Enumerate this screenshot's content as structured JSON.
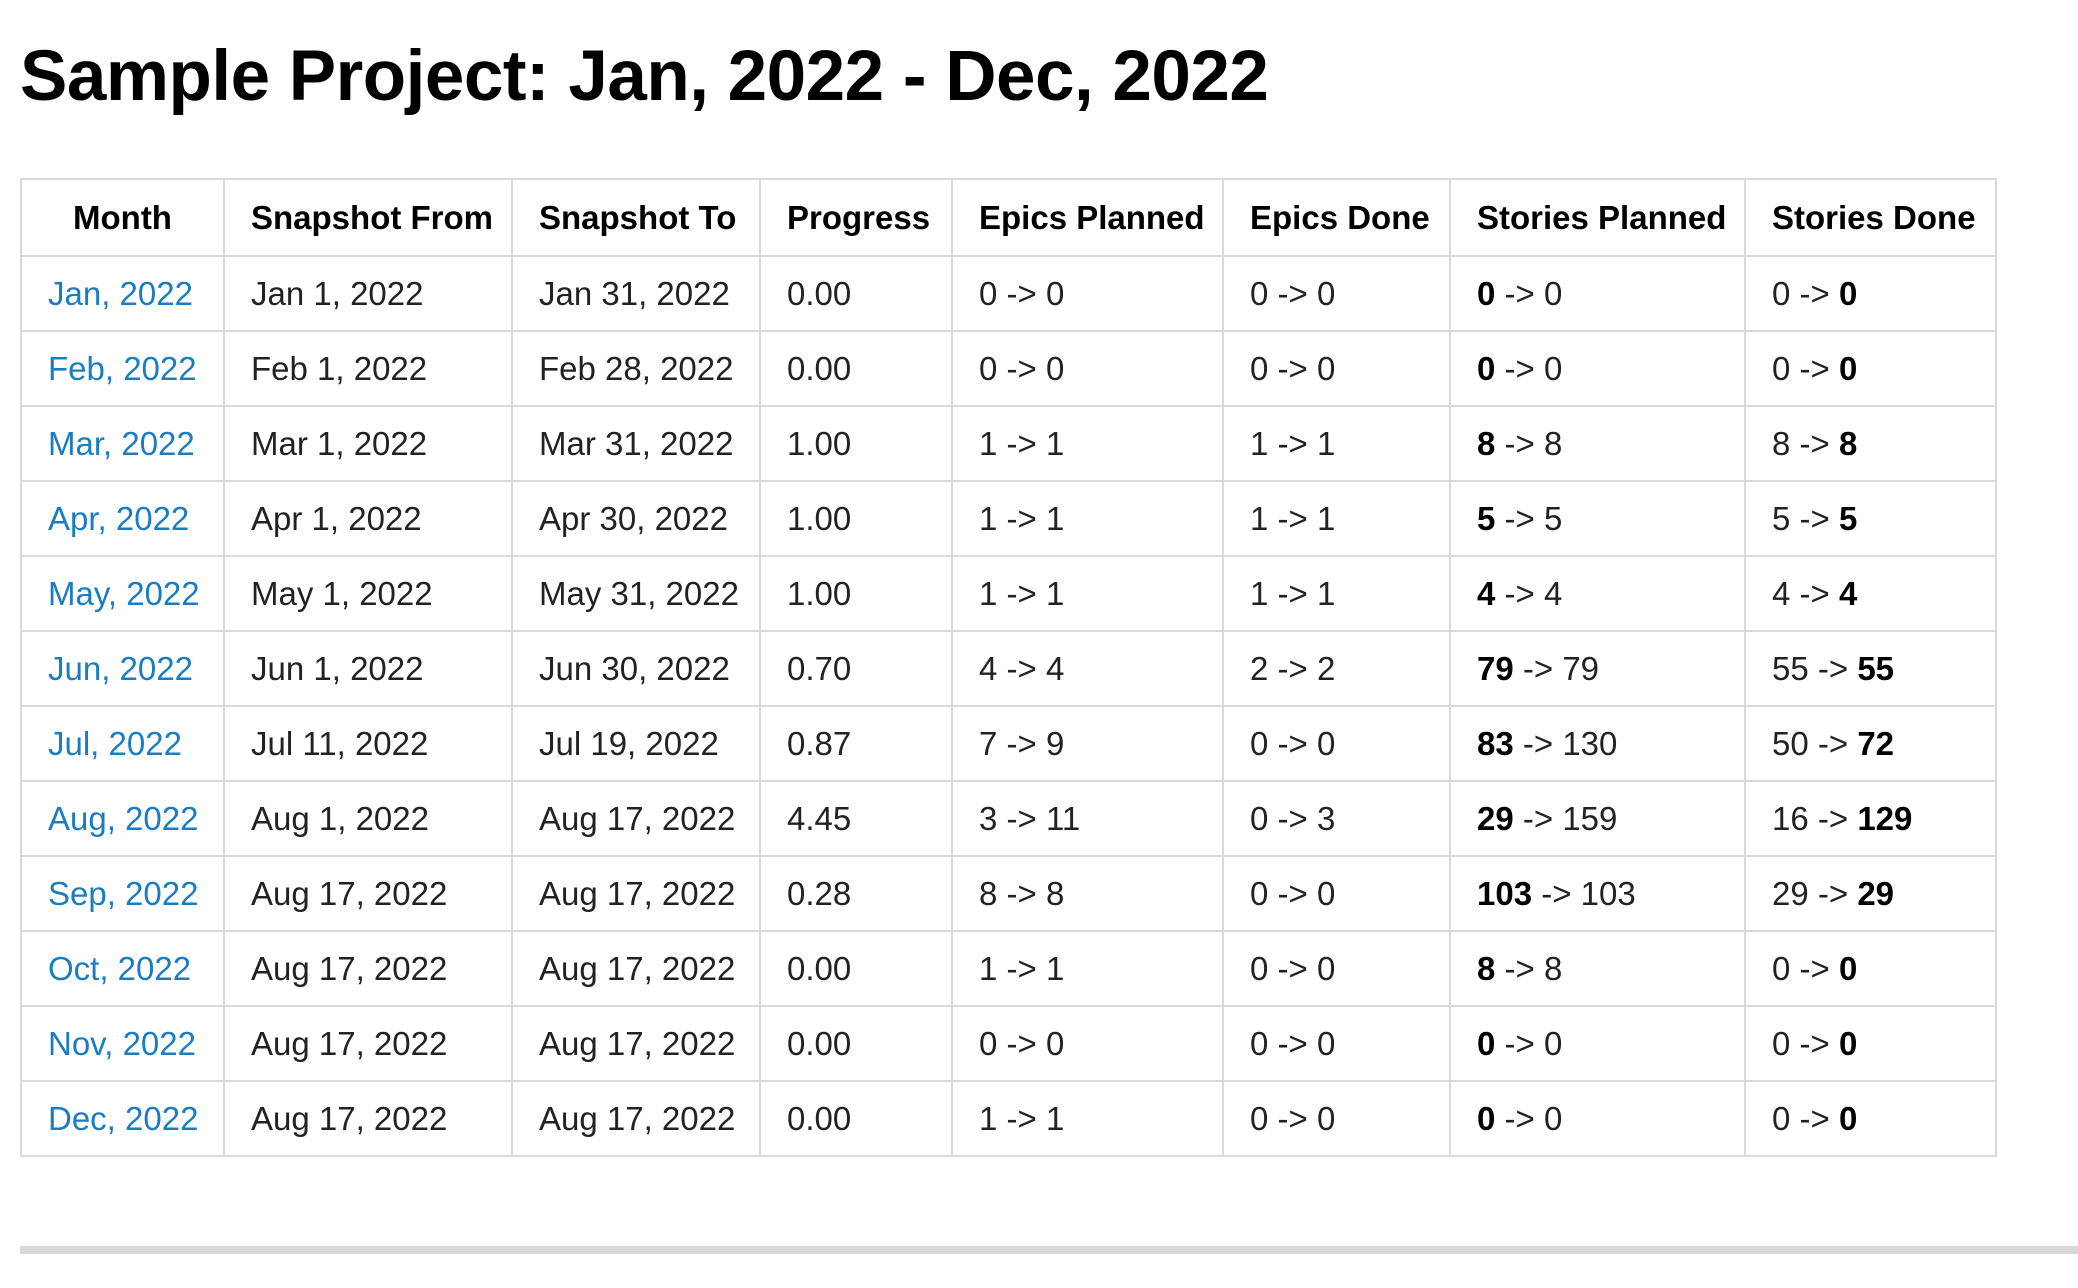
{
  "page": {
    "title": "Sample Project: Jan, 2022 - Dec, 2022"
  },
  "table": {
    "headers": [
      "Month",
      "Snapshot From",
      "Snapshot To",
      "Progress",
      "Epics Planned",
      "Epics Done",
      "Stories Planned",
      "Stories Done"
    ],
    "arrow": "->",
    "rows": [
      {
        "month": "Jan, 2022",
        "from": "Jan 1, 2022",
        "to": "Jan 31, 2022",
        "progress": "0.00",
        "epics_planned": "0 -> 0",
        "epics_done": "0 -> 0",
        "stories_planned_start": "0",
        "stories_planned_end": "0",
        "stories_done_start": "0",
        "stories_done_end": "0"
      },
      {
        "month": "Feb, 2022",
        "from": "Feb 1, 2022",
        "to": "Feb 28, 2022",
        "progress": "0.00",
        "epics_planned": "0 -> 0",
        "epics_done": "0 -> 0",
        "stories_planned_start": "0",
        "stories_planned_end": "0",
        "stories_done_start": "0",
        "stories_done_end": "0"
      },
      {
        "month": "Mar, 2022",
        "from": "Mar 1, 2022",
        "to": "Mar 31, 2022",
        "progress": "1.00",
        "epics_planned": "1 -> 1",
        "epics_done": "1 -> 1",
        "stories_planned_start": "8",
        "stories_planned_end": "8",
        "stories_done_start": "8",
        "stories_done_end": "8"
      },
      {
        "month": "Apr, 2022",
        "from": "Apr 1, 2022",
        "to": "Apr 30, 2022",
        "progress": "1.00",
        "epics_planned": "1 -> 1",
        "epics_done": "1 -> 1",
        "stories_planned_start": "5",
        "stories_planned_end": "5",
        "stories_done_start": "5",
        "stories_done_end": "5"
      },
      {
        "month": "May, 2022",
        "from": "May 1, 2022",
        "to": "May 31, 2022",
        "progress": "1.00",
        "epics_planned": "1 -> 1",
        "epics_done": "1 -> 1",
        "stories_planned_start": "4",
        "stories_planned_end": "4",
        "stories_done_start": "4",
        "stories_done_end": "4"
      },
      {
        "month": "Jun, 2022",
        "from": "Jun 1, 2022",
        "to": "Jun 30, 2022",
        "progress": "0.70",
        "epics_planned": "4 -> 4",
        "epics_done": "2 -> 2",
        "stories_planned_start": "79",
        "stories_planned_end": "79",
        "stories_done_start": "55",
        "stories_done_end": "55"
      },
      {
        "month": "Jul, 2022",
        "from": "Jul 11, 2022",
        "to": "Jul 19, 2022",
        "progress": "0.87",
        "epics_planned": "7 -> 9",
        "epics_done": "0 -> 0",
        "stories_planned_start": "83",
        "stories_planned_end": "130",
        "stories_done_start": "50",
        "stories_done_end": "72"
      },
      {
        "month": "Aug, 2022",
        "from": "Aug 1, 2022",
        "to": "Aug 17, 2022",
        "progress": "4.45",
        "epics_planned": "3 -> 11",
        "epics_done": "0 -> 3",
        "stories_planned_start": "29",
        "stories_planned_end": "159",
        "stories_done_start": "16",
        "stories_done_end": "129"
      },
      {
        "month": "Sep, 2022",
        "from": "Aug 17, 2022",
        "to": "Aug 17, 2022",
        "progress": "0.28",
        "epics_planned": "8 -> 8",
        "epics_done": "0 -> 0",
        "stories_planned_start": "103",
        "stories_planned_end": "103",
        "stories_done_start": "29",
        "stories_done_end": "29"
      },
      {
        "month": "Oct, 2022",
        "from": "Aug 17, 2022",
        "to": "Aug 17, 2022",
        "progress": "0.00",
        "epics_planned": "1 -> 1",
        "epics_done": "0 -> 0",
        "stories_planned_start": "8",
        "stories_planned_end": "8",
        "stories_done_start": "0",
        "stories_done_end": "0"
      },
      {
        "month": "Nov, 2022",
        "from": "Aug 17, 2022",
        "to": "Aug 17, 2022",
        "progress": "0.00",
        "epics_planned": "0 -> 0",
        "epics_done": "0 -> 0",
        "stories_planned_start": "0",
        "stories_planned_end": "0",
        "stories_done_start": "0",
        "stories_done_end": "0"
      },
      {
        "month": "Dec, 2022",
        "from": "Aug 17, 2022",
        "to": "Aug 17, 2022",
        "progress": "0.00",
        "epics_planned": "1 -> 1",
        "epics_done": "0 -> 0",
        "stories_planned_start": "0",
        "stories_planned_end": "0",
        "stories_done_start": "0",
        "stories_done_end": "0"
      }
    ]
  },
  "colors": {
    "link": "#1a7dc1",
    "border": "#d9d9d9",
    "divider": "#d8d8d8"
  }
}
